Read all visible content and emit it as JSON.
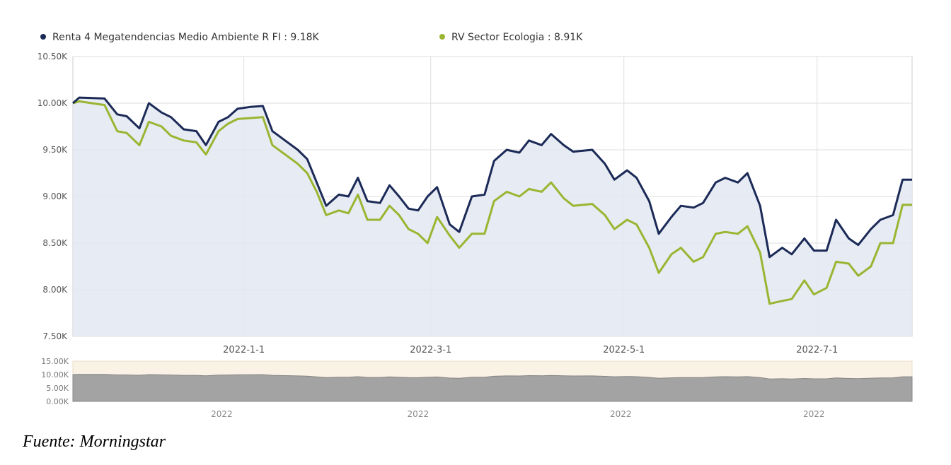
{
  "chart_data": {
    "type": "line",
    "legend_position": "top-left",
    "grid": true,
    "series": [
      {
        "name": "Renta 4 Megatendencias Medio Ambiente R FI : 9.18K",
        "color": "#1b2a57",
        "points": [
          [
            "2021-11-08",
            10.0
          ],
          [
            "2021-11-10",
            10.06
          ],
          [
            "2021-11-18",
            10.05
          ],
          [
            "2021-11-22",
            9.88
          ],
          [
            "2021-11-25",
            9.86
          ],
          [
            "2021-11-29",
            9.73
          ],
          [
            "2021-12-02",
            10.0
          ],
          [
            "2021-12-06",
            9.9
          ],
          [
            "2021-12-09",
            9.85
          ],
          [
            "2021-12-13",
            9.72
          ],
          [
            "2021-12-17",
            9.7
          ],
          [
            "2021-12-20",
            9.55
          ],
          [
            "2021-12-24",
            9.8
          ],
          [
            "2021-12-27",
            9.85
          ],
          [
            "2021-12-30",
            9.94
          ],
          [
            "2022-01-03",
            9.96
          ],
          [
            "2022-01-07",
            9.97
          ],
          [
            "2022-01-10",
            9.7
          ],
          [
            "2022-01-14",
            9.6
          ],
          [
            "2022-01-18",
            9.5
          ],
          [
            "2022-01-21",
            9.4
          ],
          [
            "2022-01-24",
            9.15
          ],
          [
            "2022-01-27",
            8.9
          ],
          [
            "2022-01-31",
            9.02
          ],
          [
            "2022-02-03",
            9.0
          ],
          [
            "2022-02-06",
            9.2
          ],
          [
            "2022-02-09",
            8.95
          ],
          [
            "2022-02-13",
            8.93
          ],
          [
            "2022-02-16",
            9.12
          ],
          [
            "2022-02-19",
            9.0
          ],
          [
            "2022-02-22",
            8.87
          ],
          [
            "2022-02-25",
            8.85
          ],
          [
            "2022-02-28",
            9.0
          ],
          [
            "2022-03-03",
            9.1
          ],
          [
            "2022-03-07",
            8.7
          ],
          [
            "2022-03-10",
            8.62
          ],
          [
            "2022-03-14",
            9.0
          ],
          [
            "2022-03-18",
            9.02
          ],
          [
            "2022-03-21",
            9.38
          ],
          [
            "2022-03-25",
            9.5
          ],
          [
            "2022-03-29",
            9.47
          ],
          [
            "2022-04-01",
            9.6
          ],
          [
            "2022-04-05",
            9.55
          ],
          [
            "2022-04-08",
            9.67
          ],
          [
            "2022-04-12",
            9.55
          ],
          [
            "2022-04-15",
            9.48
          ],
          [
            "2022-04-21",
            9.5
          ],
          [
            "2022-04-25",
            9.35
          ],
          [
            "2022-04-28",
            9.18
          ],
          [
            "2022-05-02",
            9.28
          ],
          [
            "2022-05-05",
            9.2
          ],
          [
            "2022-05-09",
            8.95
          ],
          [
            "2022-05-12",
            8.6
          ],
          [
            "2022-05-16",
            8.78
          ],
          [
            "2022-05-19",
            8.9
          ],
          [
            "2022-05-23",
            8.88
          ],
          [
            "2022-05-26",
            8.93
          ],
          [
            "2022-05-30",
            9.15
          ],
          [
            "2022-06-02",
            9.2
          ],
          [
            "2022-06-06",
            9.15
          ],
          [
            "2022-06-09",
            9.25
          ],
          [
            "2022-06-13",
            8.9
          ],
          [
            "2022-06-16",
            8.35
          ],
          [
            "2022-06-20",
            8.45
          ],
          [
            "2022-06-23",
            8.38
          ],
          [
            "2022-06-27",
            8.55
          ],
          [
            "2022-06-30",
            8.42
          ],
          [
            "2022-07-04",
            8.42
          ],
          [
            "2022-07-07",
            8.75
          ],
          [
            "2022-07-11",
            8.55
          ],
          [
            "2022-07-14",
            8.48
          ],
          [
            "2022-07-18",
            8.65
          ],
          [
            "2022-07-21",
            8.75
          ],
          [
            "2022-07-25",
            8.8
          ],
          [
            "2022-07-28",
            9.18
          ],
          [
            "2022-07-31",
            9.18
          ]
        ]
      },
      {
        "name": "RV Sector Ecologia : 8.91K",
        "color": "#9ab532",
        "points": [
          [
            "2021-11-08",
            10.0
          ],
          [
            "2021-11-10",
            10.02
          ],
          [
            "2021-11-18",
            9.98
          ],
          [
            "2021-11-22",
            9.7
          ],
          [
            "2021-11-25",
            9.68
          ],
          [
            "2021-11-29",
            9.55
          ],
          [
            "2021-12-02",
            9.8
          ],
          [
            "2021-12-06",
            9.75
          ],
          [
            "2021-12-09",
            9.65
          ],
          [
            "2021-12-13",
            9.6
          ],
          [
            "2021-12-17",
            9.58
          ],
          [
            "2021-12-20",
            9.45
          ],
          [
            "2021-12-24",
            9.7
          ],
          [
            "2021-12-27",
            9.78
          ],
          [
            "2021-12-30",
            9.83
          ],
          [
            "2022-01-03",
            9.84
          ],
          [
            "2022-01-07",
            9.85
          ],
          [
            "2022-01-10",
            9.55
          ],
          [
            "2022-01-14",
            9.45
          ],
          [
            "2022-01-18",
            9.35
          ],
          [
            "2022-01-21",
            9.25
          ],
          [
            "2022-01-24",
            9.05
          ],
          [
            "2022-01-27",
            8.8
          ],
          [
            "2022-01-31",
            8.85
          ],
          [
            "2022-02-03",
            8.82
          ],
          [
            "2022-02-06",
            9.02
          ],
          [
            "2022-02-09",
            8.75
          ],
          [
            "2022-02-13",
            8.75
          ],
          [
            "2022-02-16",
            8.9
          ],
          [
            "2022-02-19",
            8.8
          ],
          [
            "2022-02-22",
            8.65
          ],
          [
            "2022-02-25",
            8.6
          ],
          [
            "2022-02-28",
            8.5
          ],
          [
            "2022-03-03",
            8.78
          ],
          [
            "2022-03-07",
            8.58
          ],
          [
            "2022-03-10",
            8.45
          ],
          [
            "2022-03-14",
            8.6
          ],
          [
            "2022-03-18",
            8.6
          ],
          [
            "2022-03-21",
            8.95
          ],
          [
            "2022-03-25",
            9.05
          ],
          [
            "2022-03-29",
            9.0
          ],
          [
            "2022-04-01",
            9.08
          ],
          [
            "2022-04-05",
            9.05
          ],
          [
            "2022-04-08",
            9.15
          ],
          [
            "2022-04-12",
            8.98
          ],
          [
            "2022-04-15",
            8.9
          ],
          [
            "2022-04-21",
            8.92
          ],
          [
            "2022-04-25",
            8.8
          ],
          [
            "2022-04-28",
            8.65
          ],
          [
            "2022-05-02",
            8.75
          ],
          [
            "2022-05-05",
            8.7
          ],
          [
            "2022-05-09",
            8.45
          ],
          [
            "2022-05-12",
            8.18
          ],
          [
            "2022-05-16",
            8.38
          ],
          [
            "2022-05-19",
            8.45
          ],
          [
            "2022-05-23",
            8.3
          ],
          [
            "2022-05-26",
            8.35
          ],
          [
            "2022-05-30",
            8.6
          ],
          [
            "2022-06-02",
            8.62
          ],
          [
            "2022-06-06",
            8.6
          ],
          [
            "2022-06-09",
            8.68
          ],
          [
            "2022-06-13",
            8.4
          ],
          [
            "2022-06-16",
            7.85
          ],
          [
            "2022-06-20",
            7.88
          ],
          [
            "2022-06-23",
            7.9
          ],
          [
            "2022-06-27",
            8.1
          ],
          [
            "2022-06-30",
            7.95
          ],
          [
            "2022-07-04",
            8.02
          ],
          [
            "2022-07-07",
            8.3
          ],
          [
            "2022-07-11",
            8.28
          ],
          [
            "2022-07-14",
            8.15
          ],
          [
            "2022-07-18",
            8.25
          ],
          [
            "2022-07-21",
            8.5
          ],
          [
            "2022-07-25",
            8.5
          ],
          [
            "2022-07-28",
            8.91
          ],
          [
            "2022-07-31",
            8.91
          ]
        ]
      }
    ],
    "x_start": "2021-11-08",
    "x_end": "2022-07-31",
    "x_ticks": [
      {
        "date": "2022-01-01",
        "label": "2022-1-1"
      },
      {
        "date": "2022-03-01",
        "label": "2022-3-1"
      },
      {
        "date": "2022-05-01",
        "label": "2022-5-1"
      },
      {
        "date": "2022-07-01",
        "label": "2022-7-1"
      }
    ],
    "y_ticks": [
      {
        "value": 10.5,
        "label": "10.50K"
      },
      {
        "value": 10.0,
        "label": "10.00K"
      },
      {
        "value": 9.5,
        "label": "9.50K"
      },
      {
        "value": 9.0,
        "label": "9.00K"
      },
      {
        "value": 8.5,
        "label": "8.50K"
      },
      {
        "value": 8.0,
        "label": "8.00K"
      },
      {
        "value": 7.5,
        "label": "7.50K"
      }
    ],
    "ylim": [
      7.5,
      10.5
    ],
    "navigator": {
      "y_ticks": [
        {
          "value": 15,
          "label": "15.00K"
        },
        {
          "value": 10,
          "label": "10.00K"
        },
        {
          "value": 5,
          "label": "5.00K"
        },
        {
          "value": 0,
          "label": "0.00K"
        }
      ],
      "ylim": [
        0,
        15
      ],
      "x_ticks": [
        {
          "date": "2021-12-25",
          "label": "2022"
        },
        {
          "date": "2022-02-25",
          "label": "2022"
        },
        {
          "date": "2022-04-30",
          "label": "2022"
        },
        {
          "date": "2022-06-30",
          "label": "2022"
        }
      ]
    }
  },
  "caption": "Fuente: Morningstar"
}
